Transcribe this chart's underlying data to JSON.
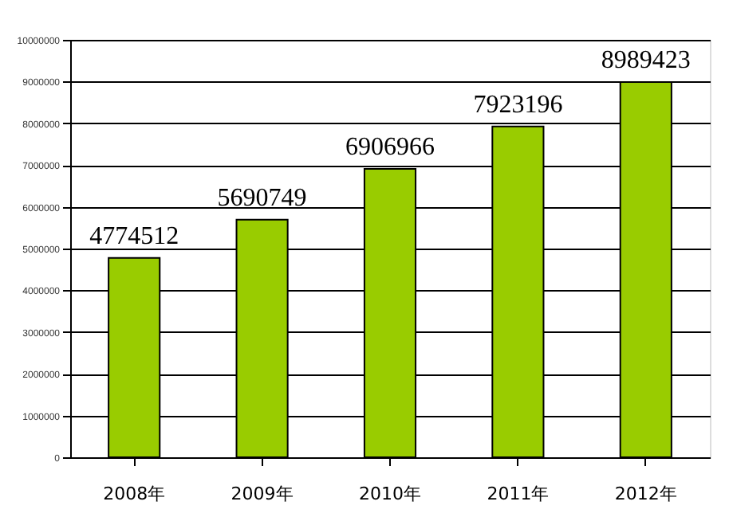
{
  "chart_data": {
    "type": "bar",
    "categories": [
      "2008年",
      "2009年",
      "2010年",
      "2011年",
      "2012年"
    ],
    "values": [
      4774512,
      5690749,
      6906966,
      7923196,
      8989423
    ],
    "color": "#99cc00",
    "ylim": [
      0,
      10000000
    ],
    "yticks": [
      0,
      1000000,
      2000000,
      3000000,
      4000000,
      5000000,
      6000000,
      7000000,
      8000000,
      9000000,
      10000000
    ],
    "grid": "y",
    "data_labels": true
  }
}
